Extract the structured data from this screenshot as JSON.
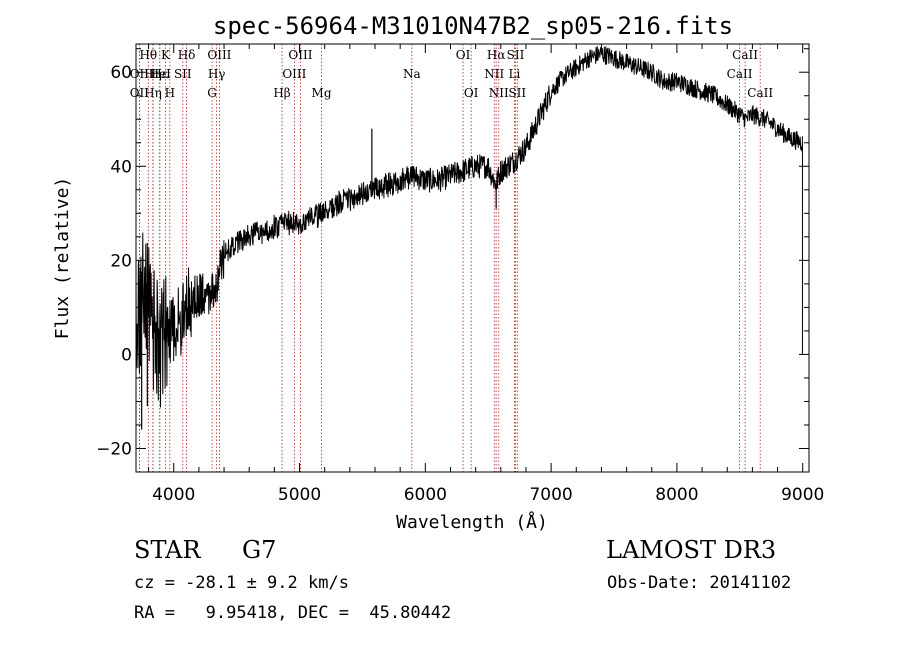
{
  "chart_data": {
    "type": "line",
    "title": "spec-56964-M31010N47B2_sp05-216.fits",
    "xlabel": "Wavelength (Å)",
    "ylabel": "Flux (relative)",
    "xlim": [
      3700,
      9050
    ],
    "ylim": [
      -25,
      66
    ],
    "xticks": [
      4000,
      5000,
      6000,
      7000,
      8000,
      9000
    ],
    "yticks": [
      -20,
      0,
      20,
      40,
      60
    ],
    "x_minor_step": 200,
    "y_minor_step": 5,
    "spectrum_knots": [
      [
        3700,
        6
      ],
      [
        3760,
        14
      ],
      [
        3800,
        10
      ],
      [
        3850,
        5
      ],
      [
        3900,
        2
      ],
      [
        3950,
        3
      ],
      [
        4000,
        6
      ],
      [
        4050,
        7
      ],
      [
        4100,
        11
      ],
      [
        4200,
        13
      ],
      [
        4300,
        13
      ],
      [
        4350,
        16
      ],
      [
        4400,
        21
      ],
      [
        4500,
        24
      ],
      [
        4600,
        25
      ],
      [
        4700,
        26
      ],
      [
        4800,
        27
      ],
      [
        4900,
        28
      ],
      [
        5000,
        28
      ],
      [
        5100,
        29
      ],
      [
        5200,
        30
      ],
      [
        5300,
        32
      ],
      [
        5400,
        33
      ],
      [
        5500,
        34
      ],
      [
        5600,
        35
      ],
      [
        5700,
        36
      ],
      [
        5800,
        37
      ],
      [
        5900,
        38
      ],
      [
        6000,
        37
      ],
      [
        6100,
        37
      ],
      [
        6200,
        38
      ],
      [
        6300,
        39
      ],
      [
        6400,
        40
      ],
      [
        6500,
        40
      ],
      [
        6560,
        36
      ],
      [
        6600,
        39
      ],
      [
        6700,
        41
      ],
      [
        6800,
        44
      ],
      [
        6900,
        50
      ],
      [
        7000,
        56
      ],
      [
        7100,
        59
      ],
      [
        7200,
        61
      ],
      [
        7300,
        63
      ],
      [
        7400,
        64
      ],
      [
        7500,
        63
      ],
      [
        7600,
        62
      ],
      [
        7700,
        61
      ],
      [
        7800,
        60
      ],
      [
        7900,
        58
      ],
      [
        8000,
        58
      ],
      [
        8100,
        57
      ],
      [
        8200,
        56
      ],
      [
        8300,
        55
      ],
      [
        8400,
        53
      ],
      [
        8500,
        51
      ],
      [
        8550,
        50
      ],
      [
        8600,
        51
      ],
      [
        8700,
        50
      ],
      [
        8800,
        48
      ],
      [
        8900,
        46
      ],
      [
        9000,
        45
      ]
    ],
    "spikes": [
      [
        5575,
        48
      ],
      [
        6563,
        31
      ],
      [
        3745,
        -16
      ],
      [
        3790,
        -11
      ]
    ],
    "line_markers": [
      {
        "label": "Hθ",
        "x": 3798,
        "row": 0
      },
      {
        "label": "OII",
        "x": 3727,
        "row": 1
      },
      {
        "label": "OII",
        "x": 3727,
        "row": 2
      },
      {
        "label": "Hη",
        "x": 3835,
        "row": 1
      },
      {
        "label": "Hε",
        "x": 3889,
        "row": 1
      },
      {
        "label": "Hη",
        "x": 3835,
        "row": 2
      },
      {
        "label": "K",
        "x": 3934,
        "row": 0
      },
      {
        "label": "H",
        "x": 3969,
        "row": 2
      },
      {
        "label": "HeI",
        "x": 3889,
        "row": 1
      },
      {
        "label": "Hδ",
        "x": 4102,
        "row": 0
      },
      {
        "label": "SII",
        "x": 4072,
        "row": 1
      },
      {
        "label": "OIII",
        "x": 4363,
        "row": 0
      },
      {
        "label": "Hγ",
        "x": 4341,
        "row": 1
      },
      {
        "label": "G",
        "x": 4305,
        "row": 2
      },
      {
        "label": "Hβ",
        "x": 4861,
        "row": 2
      },
      {
        "label": "OIII",
        "x": 5007,
        "row": 0
      },
      {
        "label": "OIII",
        "x": 4959,
        "row": 1
      },
      {
        "label": "Mg",
        "x": 5175,
        "row": 2
      },
      {
        "label": "Na",
        "x": 5893,
        "row": 1
      },
      {
        "label": "OI",
        "x": 6300,
        "row": 0
      },
      {
        "label": "OI",
        "x": 6364,
        "row": 2
      },
      {
        "label": "Hα",
        "x": 6563,
        "row": 0
      },
      {
        "label": "NII",
        "x": 6548,
        "row": 1
      },
      {
        "label": "NII",
        "x": 6584,
        "row": 2
      },
      {
        "label": "SII",
        "x": 6717,
        "row": 0
      },
      {
        "label": "Li",
        "x": 6708,
        "row": 1
      },
      {
        "label": "SII",
        "x": 6731,
        "row": 2
      },
      {
        "label": "CaII",
        "x": 8542,
        "row": 0
      },
      {
        "label": "CaII",
        "x": 8498,
        "row": 1
      },
      {
        "label": "CaII",
        "x": 8662,
        "row": 2
      }
    ],
    "marker_color": "#b22222"
  },
  "info": {
    "object_class": "STAR",
    "subclass": "G7",
    "survey": "LAMOST DR3",
    "redshift_line": "cz = -28.1 ± 9.2 km/s",
    "obs_date": "Obs-Date: 20141102",
    "coords": "RA =   9.95418, DEC =  45.80442"
  }
}
